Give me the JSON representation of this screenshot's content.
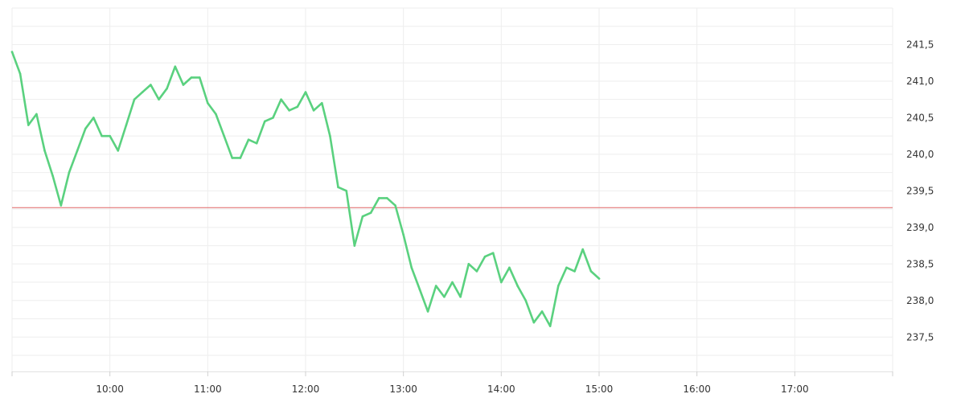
{
  "chart_data": {
    "type": "line",
    "title": "",
    "xlabel": "",
    "ylabel": "",
    "grid": true,
    "x_tick_labels": [
      "10:00",
      "11:00",
      "12:00",
      "13:00",
      "14:00",
      "15:00",
      "16:00",
      "17:00"
    ],
    "x_tick_hours": [
      10,
      11,
      12,
      13,
      14,
      15,
      16,
      17
    ],
    "y_tick_labels": [
      "237,5",
      "238,0",
      "238,5",
      "239,0",
      "239,5",
      "240,0",
      "240,5",
      "241,0",
      "241,5"
    ],
    "y_tick_values": [
      237.5,
      238.0,
      238.5,
      239.0,
      239.5,
      240.0,
      240.5,
      241.0,
      241.5
    ],
    "xlim_hours": [
      9.0,
      18.0
    ],
    "ylim": [
      237.03,
      242.0
    ],
    "reference_line": {
      "value": 239.27,
      "color": "#e06666"
    },
    "series": [
      {
        "color": "#5ad17f",
        "x_hours": [
          9.0,
          9.083,
          9.167,
          9.25,
          9.333,
          9.417,
          9.5,
          9.583,
          9.667,
          9.75,
          9.833,
          9.917,
          10.0,
          10.083,
          10.167,
          10.25,
          10.333,
          10.417,
          10.5,
          10.583,
          10.667,
          10.75,
          10.833,
          10.917,
          11.0,
          11.083,
          11.167,
          11.25,
          11.333,
          11.417,
          11.5,
          11.583,
          11.667,
          11.75,
          11.833,
          11.917,
          12.0,
          12.083,
          12.167,
          12.25,
          12.333,
          12.417,
          12.5,
          12.583,
          12.667,
          12.75,
          12.833,
          12.917,
          13.0,
          13.083,
          13.167,
          13.25,
          13.333,
          13.417,
          13.5,
          13.583,
          13.667,
          13.75,
          13.833,
          13.917,
          14.0,
          14.083,
          14.167,
          14.25,
          14.333,
          14.417,
          14.5,
          14.583,
          14.667,
          14.75,
          14.833,
          14.917,
          15.0
        ],
        "values": [
          241.4,
          241.1,
          240.4,
          240.55,
          240.05,
          239.7,
          239.3,
          239.75,
          240.05,
          240.35,
          240.5,
          240.25,
          240.25,
          240.05,
          240.4,
          240.75,
          240.85,
          240.95,
          240.75,
          240.9,
          241.2,
          240.95,
          241.05,
          241.05,
          240.7,
          240.55,
          240.25,
          239.95,
          239.95,
          240.2,
          240.15,
          240.45,
          240.5,
          240.75,
          240.6,
          240.65,
          240.85,
          240.6,
          240.7,
          240.25,
          239.55,
          239.5,
          238.75,
          239.15,
          239.2,
          239.4,
          239.4,
          239.3,
          238.9,
          238.45,
          238.15,
          237.85,
          238.2,
          238.05,
          238.25,
          238.05,
          238.5,
          238.4,
          238.6,
          238.65,
          238.25,
          238.45,
          238.2,
          238.0,
          237.7,
          237.85,
          237.65,
          238.2,
          238.45,
          238.4,
          238.7,
          238.4,
          238.3
        ]
      }
    ]
  }
}
